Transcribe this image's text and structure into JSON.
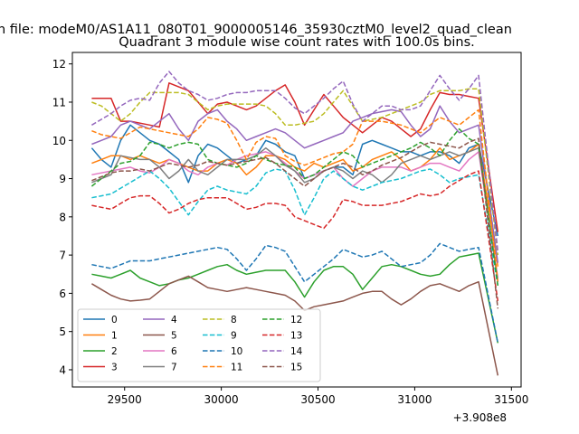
{
  "chart_data": {
    "type": "line",
    "suptitle": "n file: modeM0/AS1A11_080T01_9000005146_35930cztM0_level2_quad_clean",
    "title": "Quadrant 3 module wise count rates with 100.0s bins.",
    "xlabel": "",
    "ylabel": "",
    "x_offset_label": "+3.908e8",
    "xlim": [
      29230,
      31550
    ],
    "ylim": [
      3.55,
      12.3
    ],
    "xticks": [
      29500,
      30000,
      30500,
      31000,
      31500
    ],
    "xtick_labels": [
      "29500",
      "30000",
      "30500",
      "31000",
      "31500"
    ],
    "yticks": [
      4,
      5,
      6,
      7,
      8,
      9,
      10,
      11,
      12
    ],
    "ytick_labels": [
      "4",
      "5",
      "6",
      "7",
      "8",
      "9",
      "10",
      "11",
      "12"
    ],
    "legend_position": "lower-left",
    "legend_columns": 4,
    "x": [
      29330,
      29380,
      29430,
      29480,
      29530,
      29580,
      29630,
      29680,
      29730,
      29780,
      29830,
      29880,
      29930,
      29980,
      30030,
      30080,
      30130,
      30180,
      30230,
      30280,
      30330,
      30380,
      30430,
      30480,
      30530,
      30580,
      30630,
      30680,
      30730,
      30780,
      30830,
      30880,
      30930,
      30980,
      31030,
      31080,
      31130,
      31180,
      31230,
      31280,
      31330,
      31430
    ],
    "series": [
      {
        "name": "0",
        "color": "#1f77b4",
        "dash": "solid",
        "values": [
          9.8,
          9.5,
          9.3,
          10.0,
          10.4,
          10.2,
          10.0,
          9.9,
          9.7,
          9.5,
          8.9,
          9.6,
          9.9,
          9.8,
          9.6,
          9.4,
          9.5,
          9.6,
          10.0,
          9.9,
          9.7,
          9.6,
          9.0,
          9.1,
          9.2,
          9.3,
          9.3,
          9.1,
          9.9,
          10.0,
          9.9,
          9.8,
          9.7,
          9.7,
          9.6,
          9.7,
          9.7,
          9.6,
          9.4,
          9.8,
          9.9,
          7.5
        ]
      },
      {
        "name": "1",
        "color": "#ff7f0e",
        "dash": "solid",
        "values": [
          9.4,
          9.5,
          9.6,
          9.6,
          9.5,
          9.6,
          9.5,
          9.4,
          9.5,
          9.4,
          9.3,
          9.2,
          9.2,
          9.4,
          9.5,
          9.4,
          9.1,
          9.3,
          9.6,
          9.6,
          9.5,
          9.3,
          9.2,
          9.4,
          9.3,
          9.4,
          9.5,
          9.2,
          9.3,
          9.5,
          9.6,
          9.7,
          9.5,
          9.2,
          9.3,
          9.5,
          9.8,
          9.5,
          9.6,
          9.7,
          9.9,
          6.7
        ]
      },
      {
        "name": "2",
        "color": "#2ca02c",
        "dash": "solid",
        "values": [
          6.5,
          6.45,
          6.4,
          6.5,
          6.6,
          6.4,
          6.3,
          6.2,
          6.25,
          6.35,
          6.4,
          6.5,
          6.6,
          6.7,
          6.75,
          6.6,
          6.5,
          6.55,
          6.6,
          6.6,
          6.6,
          6.3,
          5.9,
          6.3,
          6.6,
          6.7,
          6.7,
          6.5,
          6.1,
          6.4,
          6.7,
          6.75,
          6.7,
          6.6,
          6.5,
          6.45,
          6.5,
          6.75,
          6.95,
          7.0,
          7.05,
          4.7
        ]
      },
      {
        "name": "3",
        "color": "#d62728",
        "dash": "solid",
        "values": [
          11.1,
          11.1,
          11.1,
          10.5,
          10.5,
          10.45,
          10.4,
          10.35,
          11.5,
          11.4,
          11.3,
          11.0,
          10.7,
          10.95,
          11.0,
          10.9,
          10.8,
          10.9,
          11.1,
          11.3,
          11.45,
          11.0,
          10.4,
          10.8,
          11.2,
          10.9,
          10.6,
          10.4,
          10.2,
          10.4,
          10.6,
          10.5,
          10.3,
          10.1,
          10.3,
          10.8,
          11.25,
          11.2,
          11.2,
          11.15,
          11.1,
          7.6
        ]
      },
      {
        "name": "4",
        "color": "#9467bd",
        "dash": "solid",
        "values": [
          9.9,
          10.0,
          10.1,
          10.4,
          10.5,
          10.4,
          10.3,
          10.5,
          10.7,
          10.3,
          10.0,
          10.5,
          10.7,
          10.8,
          10.5,
          10.3,
          10.0,
          10.1,
          10.2,
          10.3,
          10.2,
          10.0,
          9.8,
          9.9,
          10.0,
          10.1,
          10.2,
          10.5,
          10.6,
          10.7,
          10.75,
          10.8,
          10.75,
          10.4,
          10.1,
          10.3,
          10.9,
          10.5,
          10.2,
          10.3,
          10.4,
          6.8
        ]
      },
      {
        "name": "5",
        "color": "#8c564b",
        "dash": "solid",
        "values": [
          6.25,
          6.1,
          5.95,
          5.85,
          5.8,
          5.82,
          5.85,
          6.05,
          6.25,
          6.35,
          6.45,
          6.3,
          6.15,
          6.1,
          6.05,
          6.1,
          6.15,
          6.1,
          6.05,
          6.0,
          5.95,
          5.8,
          5.55,
          5.65,
          5.7,
          5.75,
          5.8,
          5.9,
          6.0,
          6.05,
          6.05,
          5.85,
          5.7,
          5.85,
          6.05,
          6.2,
          6.25,
          6.15,
          6.05,
          6.2,
          6.3,
          3.85
        ]
      },
      {
        "name": "6",
        "color": "#e377c2",
        "dash": "solid",
        "values": [
          9.1,
          9.15,
          9.2,
          9.25,
          9.3,
          9.2,
          9.15,
          9.3,
          9.5,
          9.4,
          9.2,
          9.1,
          9.3,
          9.4,
          9.35,
          9.5,
          9.6,
          9.65,
          9.7,
          9.6,
          9.4,
          9.2,
          9.0,
          9.1,
          9.2,
          9.3,
          9.0,
          8.8,
          9.0,
          9.2,
          9.3,
          9.3,
          9.3,
          9.2,
          9.3,
          9.4,
          9.4,
          9.3,
          9.2,
          9.5,
          9.7,
          6.4
        ]
      },
      {
        "name": "7",
        "color": "#7f7f7f",
        "dash": "solid",
        "values": [
          8.9,
          9.0,
          9.1,
          9.6,
          9.55,
          9.5,
          9.5,
          9.3,
          9.0,
          9.2,
          9.5,
          9.2,
          9.1,
          9.3,
          9.5,
          9.5,
          9.5,
          9.6,
          9.8,
          9.6,
          9.35,
          9.2,
          8.9,
          9.0,
          9.2,
          9.3,
          9.2,
          9.0,
          9.2,
          9.1,
          8.9,
          9.1,
          9.4,
          9.5,
          9.6,
          9.5,
          9.6,
          9.7,
          9.6,
          9.7,
          9.8,
          6.3
        ]
      },
      {
        "name": "8",
        "color": "#bcbd22",
        "dash": "dashed",
        "values": [
          11.0,
          10.9,
          10.7,
          10.5,
          10.7,
          11.0,
          11.25,
          11.25,
          11.25,
          11.25,
          11.2,
          11.0,
          10.8,
          10.9,
          10.95,
          10.95,
          10.95,
          10.95,
          10.9,
          10.7,
          10.4,
          10.4,
          10.45,
          10.5,
          10.7,
          11.0,
          11.3,
          10.9,
          10.5,
          10.55,
          10.6,
          10.7,
          10.8,
          10.9,
          11.0,
          11.2,
          11.3,
          11.3,
          11.3,
          11.35,
          11.35,
          7.0
        ]
      },
      {
        "name": "9",
        "color": "#17becf",
        "dash": "dashed",
        "values": [
          8.5,
          8.55,
          8.6,
          8.75,
          8.9,
          9.05,
          9.2,
          9.0,
          8.75,
          8.4,
          8.05,
          8.4,
          8.7,
          8.8,
          8.7,
          8.65,
          8.6,
          8.8,
          9.15,
          9.25,
          9.2,
          8.7,
          8.05,
          8.5,
          9.0,
          9.2,
          9.0,
          8.8,
          8.7,
          8.8,
          8.9,
          8.95,
          9.0,
          9.1,
          9.2,
          9.25,
          9.1,
          8.9,
          9.0,
          9.05,
          9.1,
          6.2
        ]
      },
      {
        "name": "10",
        "color": "#1f77b4",
        "dash": "dashed",
        "values": [
          6.75,
          6.7,
          6.65,
          6.75,
          6.85,
          6.85,
          6.85,
          6.9,
          6.95,
          7.0,
          7.05,
          7.1,
          7.15,
          7.2,
          7.15,
          6.9,
          6.6,
          6.9,
          7.25,
          7.2,
          7.1,
          6.7,
          6.3,
          6.5,
          6.7,
          6.9,
          7.15,
          7.05,
          6.95,
          7.0,
          7.1,
          6.9,
          6.7,
          6.75,
          6.8,
          7.0,
          7.3,
          7.2,
          7.1,
          7.15,
          7.2,
          4.7
        ]
      },
      {
        "name": "11",
        "color": "#ff7f0e",
        "dash": "dashed",
        "values": [
          10.25,
          10.15,
          10.1,
          10.05,
          10.2,
          10.35,
          10.3,
          10.25,
          10.2,
          10.15,
          10.1,
          10.3,
          10.6,
          10.55,
          10.45,
          10.0,
          9.5,
          9.95,
          10.1,
          10.05,
          9.6,
          9.45,
          9.35,
          9.45,
          9.55,
          9.65,
          9.7,
          9.9,
          10.5,
          10.5,
          10.5,
          10.45,
          10.4,
          10.3,
          10.2,
          10.4,
          10.6,
          10.5,
          10.4,
          10.6,
          10.8,
          6.3
        ]
      },
      {
        "name": "12",
        "color": "#2ca02c",
        "dash": "dashed",
        "values": [
          8.8,
          9.0,
          9.2,
          9.4,
          9.45,
          9.6,
          9.95,
          9.9,
          9.8,
          9.9,
          9.95,
          9.9,
          9.5,
          9.4,
          9.35,
          9.3,
          9.4,
          9.6,
          9.5,
          9.4,
          9.35,
          9.3,
          9.0,
          9.1,
          9.3,
          9.5,
          9.7,
          9.6,
          9.3,
          9.4,
          9.5,
          9.6,
          9.7,
          9.8,
          9.95,
          9.8,
          9.6,
          10.0,
          10.3,
          10.05,
          9.9,
          6.2
        ]
      },
      {
        "name": "13",
        "color": "#d62728",
        "dash": "dashed",
        "values": [
          8.3,
          8.25,
          8.2,
          8.35,
          8.5,
          8.55,
          8.55,
          8.35,
          8.1,
          8.2,
          8.35,
          8.45,
          8.5,
          8.5,
          8.5,
          8.35,
          8.2,
          8.25,
          8.35,
          8.35,
          8.3,
          8.0,
          7.9,
          7.8,
          7.7,
          8.0,
          8.45,
          8.4,
          8.3,
          8.3,
          8.3,
          8.35,
          8.4,
          8.5,
          8.6,
          8.55,
          8.6,
          8.8,
          8.95,
          9.1,
          9.2,
          5.8
        ]
      },
      {
        "name": "14",
        "color": "#9467bd",
        "dash": "dashed",
        "values": [
          10.4,
          10.55,
          10.7,
          10.9,
          11.05,
          11.1,
          11.05,
          11.5,
          11.8,
          11.5,
          11.3,
          11.2,
          11.05,
          11.1,
          11.2,
          11.25,
          11.25,
          11.3,
          11.3,
          11.3,
          11.1,
          10.85,
          10.7,
          10.9,
          11.1,
          11.35,
          11.55,
          10.95,
          10.5,
          10.7,
          10.9,
          10.9,
          10.8,
          10.8,
          10.9,
          11.3,
          11.7,
          11.35,
          11.05,
          11.35,
          11.7,
          7.1
        ]
      },
      {
        "name": "15",
        "color": "#8c564b",
        "dash": "dashed",
        "values": [
          8.95,
          9.05,
          9.15,
          9.2,
          9.2,
          9.25,
          9.2,
          9.3,
          9.4,
          9.35,
          9.3,
          9.35,
          9.45,
          9.4,
          9.35,
          9.4,
          9.45,
          9.5,
          9.55,
          9.4,
          9.2,
          9.0,
          8.8,
          9.0,
          9.2,
          9.3,
          9.4,
          9.3,
          9.1,
          9.2,
          9.35,
          9.45,
          9.55,
          9.7,
          9.85,
          9.95,
          9.9,
          9.85,
          9.8,
          9.95,
          10.05,
          5.6
        ]
      }
    ]
  }
}
